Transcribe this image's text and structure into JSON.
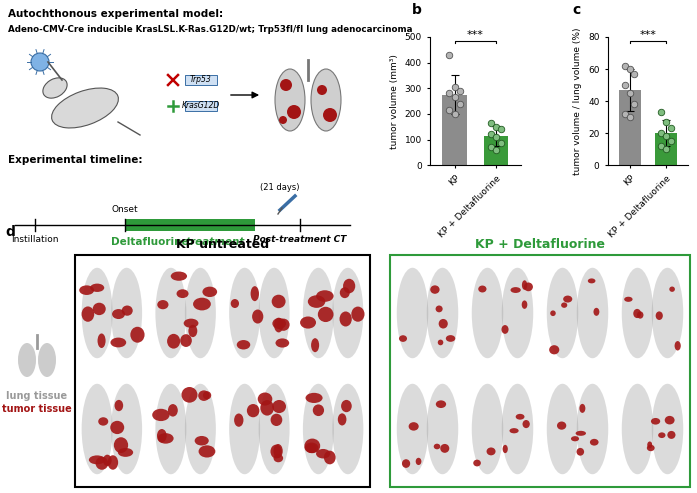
{
  "panel_labels": [
    "b",
    "c",
    "d"
  ],
  "schematic": {
    "heading": "Autochthonous experimental model:",
    "model": "Adeno-CMV-Cre inducible KrasLSL.K-Ras.G12D/wt; Trp53fl/fl lung adenocarcinoma",
    "genes": [
      "Trp53",
      "KrasG12D"
    ],
    "timeline_heading": "Experimental timeline:",
    "steps": [
      "Instillation",
      "Onset",
      "Post-treatment CT"
    ],
    "treatment": "Deltafluorine",
    "treatment_word": "treatment",
    "duration": "(21 days)",
    "color": "#2e9a3a"
  },
  "chart_data": [
    {
      "type": "bar",
      "categories": [
        "KP",
        "KP + Deltafluorine"
      ],
      "values": [
        275,
        113
      ],
      "errors": [
        75,
        40
      ],
      "points": [
        [
          430,
          305,
          290,
          280,
          265,
          240,
          215,
          200
        ],
        [
          165,
          150,
          140,
          120,
          110,
          85,
          70,
          60
        ]
      ],
      "colors": [
        "#8c8c8c",
        "#3a9a3a"
      ],
      "ylabel": "tumor volume (mm³)",
      "ylim": [
        0,
        500
      ],
      "yticks": [
        0,
        100,
        200,
        300,
        400,
        500
      ],
      "annotation": "***"
    },
    {
      "type": "bar",
      "categories": [
        "KP",
        "KP + Deltafluorine"
      ],
      "values": [
        47,
        20
      ],
      "errors": [
        13,
        8
      ],
      "points": [
        [
          62,
          60,
          57,
          50,
          45,
          38,
          32,
          30
        ],
        [
          33,
          27,
          23,
          20,
          18,
          15,
          12,
          10
        ]
      ],
      "colors": [
        "#8c8c8c",
        "#3a9a3a"
      ],
      "ylabel": "tumor volume / lung volume (%)",
      "ylim": [
        0,
        80
      ],
      "yticks": [
        0,
        20,
        40,
        60,
        80
      ],
      "annotation": "***"
    }
  ],
  "renderings": {
    "samples_per_group": 8,
    "groups": [
      {
        "title": "KP untreated",
        "color": "#000000"
      },
      {
        "title": "KP + Deltafluorine",
        "color": "#2e9a3a"
      }
    ],
    "legend": [
      {
        "name": "lung tissue",
        "color": "#9a9a9a"
      },
      {
        "name": "tumor tissue",
        "color": "#a31515"
      }
    ]
  }
}
